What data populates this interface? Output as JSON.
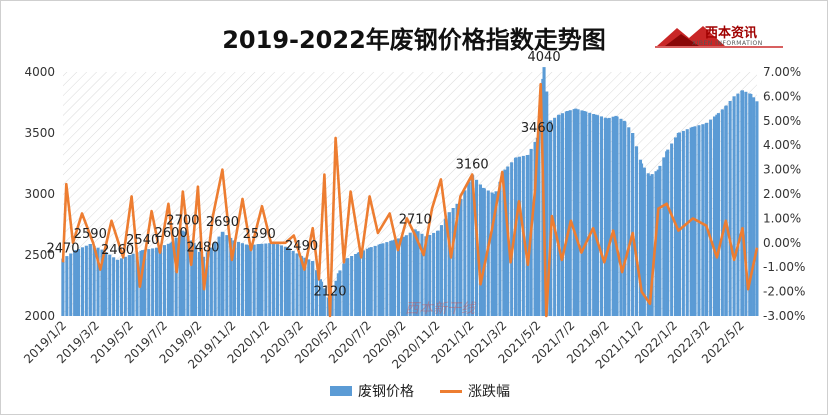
{
  "chart_data": {
    "type": "bar+line",
    "title": "2019-2022年废钢价格指数走势图",
    "logo": {
      "name": "西本资讯",
      "sub": "XIBEN INFORMATION"
    },
    "watermark": "西本新干线",
    "left_axis": {
      "ylim": [
        2000,
        4000
      ],
      "ticks": [
        "2000",
        "2500",
        "3000",
        "3500",
        "4000"
      ]
    },
    "right_axis": {
      "ylim": [
        -3,
        7
      ],
      "ticks": [
        "-3.00%",
        "-2.00%",
        "-1.00%",
        "0.00%",
        "1.00%",
        "2.00%",
        "3.00%",
        "4.00%",
        "5.00%",
        "6.00%",
        "7.00%"
      ]
    },
    "x_tick_labels": [
      "2019/1/2",
      "2019/3/2",
      "2019/5/2",
      "2019/7/2",
      "2019/9/2",
      "2019/11/2",
      "2020/1/2",
      "2020/3/2",
      "2020/5/2",
      "2020/7/2",
      "2020/9/2",
      "2020/11/2",
      "2021/1/2",
      "2021/3/2",
      "2021/5/2",
      "2021/7/2",
      "2021/9/2",
      "2021/11/2",
      "2022/1/2",
      "2022/3/2",
      "2022/5/2"
    ],
    "x_range": [
      "2019-01-02",
      "2022-05-31"
    ],
    "series": [
      {
        "name": "废钢价格",
        "type": "bar",
        "color": "#5b9bd5",
        "points": [
          [
            "2019-01-02",
            2470
          ],
          [
            "2019-01-25",
            2540
          ],
          [
            "2019-02-20",
            2590
          ],
          [
            "2019-03-15",
            2540
          ],
          [
            "2019-04-10",
            2460
          ],
          [
            "2019-05-02",
            2500
          ],
          [
            "2019-05-25",
            2540
          ],
          [
            "2019-06-20",
            2560
          ],
          [
            "2019-07-15",
            2600
          ],
          [
            "2019-08-05",
            2700
          ],
          [
            "2019-08-25",
            2600
          ],
          [
            "2019-09-10",
            2480
          ],
          [
            "2019-09-25",
            2560
          ],
          [
            "2019-10-15",
            2690
          ],
          [
            "2019-11-05",
            2620
          ],
          [
            "2019-12-01",
            2580
          ],
          [
            "2019-12-20",
            2590
          ],
          [
            "2020-01-15",
            2600
          ],
          [
            "2020-02-10",
            2560
          ],
          [
            "2020-03-05",
            2490
          ],
          [
            "2020-03-25",
            2450
          ],
          [
            "2020-04-10",
            2280
          ],
          [
            "2020-04-25",
            2120
          ],
          [
            "2020-05-10",
            2350
          ],
          [
            "2020-05-25",
            2470
          ],
          [
            "2020-06-15",
            2520
          ],
          [
            "2020-07-05",
            2560
          ],
          [
            "2020-07-25",
            2590
          ],
          [
            "2020-08-15",
            2620
          ],
          [
            "2020-09-05",
            2650
          ],
          [
            "2020-09-25",
            2710
          ],
          [
            "2020-10-15",
            2650
          ],
          [
            "2020-11-05",
            2700
          ],
          [
            "2020-11-25",
            2850
          ],
          [
            "2020-12-15",
            2950
          ],
          [
            "2021-01-05",
            3160
          ],
          [
            "2021-01-25",
            3050
          ],
          [
            "2021-02-15",
            3000
          ],
          [
            "2021-03-05",
            3200
          ],
          [
            "2021-03-25",
            3300
          ],
          [
            "2021-04-15",
            3320
          ],
          [
            "2021-05-02",
            3460
          ],
          [
            "2021-05-14",
            4040
          ],
          [
            "2021-05-25",
            3600
          ],
          [
            "2021-06-10",
            3650
          ],
          [
            "2021-06-25",
            3680
          ],
          [
            "2021-07-10",
            3700
          ],
          [
            "2021-07-25",
            3680
          ],
          [
            "2021-08-15",
            3650
          ],
          [
            "2021-09-05",
            3620
          ],
          [
            "2021-09-20",
            3640
          ],
          [
            "2021-10-05",
            3600
          ],
          [
            "2021-10-20",
            3500
          ],
          [
            "2021-11-05",
            3250
          ],
          [
            "2021-11-20",
            3150
          ],
          [
            "2021-12-05",
            3200
          ],
          [
            "2021-12-20",
            3350
          ],
          [
            "2022-01-10",
            3500
          ],
          [
            "2022-02-05",
            3550
          ],
          [
            "2022-03-01",
            3580
          ],
          [
            "2022-03-20",
            3650
          ],
          [
            "2022-04-05",
            3720
          ],
          [
            "2022-04-20",
            3800
          ],
          [
            "2022-05-05",
            3850
          ],
          [
            "2022-05-20",
            3820
          ],
          [
            "2022-05-31",
            3760
          ]
        ]
      },
      {
        "name": "涨跌幅",
        "type": "line",
        "color": "#ed7d31",
        "points": [
          [
            "2019-01-02",
            -0.8
          ],
          [
            "2019-01-08",
            2.4
          ],
          [
            "2019-01-20",
            0.0
          ],
          [
            "2019-02-05",
            1.2
          ],
          [
            "2019-02-25",
            0.0
          ],
          [
            "2019-03-10",
            -1.1
          ],
          [
            "2019-03-30",
            0.9
          ],
          [
            "2019-04-20",
            -0.6
          ],
          [
            "2019-05-05",
            1.9
          ],
          [
            "2019-05-20",
            -1.8
          ],
          [
            "2019-06-10",
            1.3
          ],
          [
            "2019-06-25",
            -0.4
          ],
          [
            "2019-07-10",
            1.6
          ],
          [
            "2019-07-25",
            -1.2
          ],
          [
            "2019-08-05",
            2.1
          ],
          [
            "2019-08-20",
            -0.9
          ],
          [
            "2019-09-01",
            2.3
          ],
          [
            "2019-09-12",
            -1.9
          ],
          [
            "2019-09-28",
            1.1
          ],
          [
            "2019-10-15",
            3.0
          ],
          [
            "2019-11-01",
            -0.7
          ],
          [
            "2019-11-20",
            1.8
          ],
          [
            "2019-12-05",
            -0.3
          ],
          [
            "2019-12-25",
            1.5
          ],
          [
            "2020-01-10",
            0.0
          ],
          [
            "2020-02-05",
            0.0
          ],
          [
            "2020-02-20",
            0.3
          ],
          [
            "2020-03-10",
            -1.1
          ],
          [
            "2020-03-25",
            0.6
          ],
          [
            "2020-04-05",
            -1.5
          ],
          [
            "2020-04-15",
            2.8
          ],
          [
            "2020-04-25",
            -3.0
          ],
          [
            "2020-05-05",
            4.3
          ],
          [
            "2020-05-20",
            -0.8
          ],
          [
            "2020-06-01",
            2.1
          ],
          [
            "2020-06-20",
            -0.6
          ],
          [
            "2020-07-05",
            1.9
          ],
          [
            "2020-07-20",
            0.4
          ],
          [
            "2020-08-10",
            1.2
          ],
          [
            "2020-08-25",
            -0.3
          ],
          [
            "2020-09-10",
            1.0
          ],
          [
            "2020-09-25",
            0.3
          ],
          [
            "2020-10-10",
            -0.5
          ],
          [
            "2020-10-25",
            1.4
          ],
          [
            "2020-11-10",
            2.6
          ],
          [
            "2020-11-28",
            -0.6
          ],
          [
            "2020-12-15",
            1.9
          ],
          [
            "2021-01-05",
            2.8
          ],
          [
            "2021-01-20",
            -1.7
          ],
          [
            "2021-02-10",
            0.6
          ],
          [
            "2021-02-28",
            2.9
          ],
          [
            "2021-03-15",
            -0.8
          ],
          [
            "2021-03-30",
            1.7
          ],
          [
            "2021-04-15",
            -0.9
          ],
          [
            "2021-04-28",
            2.2
          ],
          [
            "2021-05-08",
            6.5
          ],
          [
            "2021-05-18",
            -3.0
          ],
          [
            "2021-05-28",
            1.1
          ],
          [
            "2021-06-15",
            -0.7
          ],
          [
            "2021-07-01",
            0.9
          ],
          [
            "2021-07-20",
            -0.4
          ],
          [
            "2021-08-10",
            0.6
          ],
          [
            "2021-08-30",
            -0.8
          ],
          [
            "2021-09-15",
            0.5
          ],
          [
            "2021-10-01",
            -1.2
          ],
          [
            "2021-10-20",
            0.4
          ],
          [
            "2021-11-05",
            -2.0
          ],
          [
            "2021-11-20",
            -2.5
          ],
          [
            "2021-12-05",
            1.4
          ],
          [
            "2021-12-20",
            1.6
          ],
          [
            "2022-01-10",
            0.5
          ],
          [
            "2022-02-05",
            1.0
          ],
          [
            "2022-03-01",
            0.7
          ],
          [
            "2022-03-20",
            -0.6
          ],
          [
            "2022-04-05",
            0.9
          ],
          [
            "2022-04-20",
            -0.7
          ],
          [
            "2022-05-05",
            0.6
          ],
          [
            "2022-05-15",
            -1.9
          ],
          [
            "2022-05-31",
            -0.2
          ]
        ]
      }
    ],
    "data_labels": [
      {
        "date": "2019-01-02",
        "value": 2470,
        "text": "2470"
      },
      {
        "date": "2019-02-20",
        "value": 2590,
        "text": "2590"
      },
      {
        "date": "2019-04-10",
        "value": 2460,
        "text": "2460"
      },
      {
        "date": "2019-05-25",
        "value": 2540,
        "text": "2540"
      },
      {
        "date": "2019-07-15",
        "value": 2600,
        "text": "2600"
      },
      {
        "date": "2019-08-05",
        "value": 2700,
        "text": "2700"
      },
      {
        "date": "2019-09-10",
        "value": 2480,
        "text": "2480"
      },
      {
        "date": "2019-10-15",
        "value": 2690,
        "text": "2690"
      },
      {
        "date": "2019-12-20",
        "value": 2590,
        "text": "2590"
      },
      {
        "date": "2020-03-05",
        "value": 2490,
        "text": "2490"
      },
      {
        "date": "2020-04-25",
        "value": 2120,
        "text": "2120"
      },
      {
        "date": "2020-09-25",
        "value": 2710,
        "text": "2710"
      },
      {
        "date": "2021-01-05",
        "value": 3160,
        "text": "3160"
      },
      {
        "date": "2021-05-02",
        "value": 3460,
        "text": "3460"
      },
      {
        "date": "2021-05-14",
        "value": 4040,
        "text": "4040"
      }
    ],
    "legend": {
      "position": "bottom",
      "items": [
        "废钢价格",
        "涨跌幅"
      ]
    },
    "grid": false,
    "background_hatch": true
  }
}
